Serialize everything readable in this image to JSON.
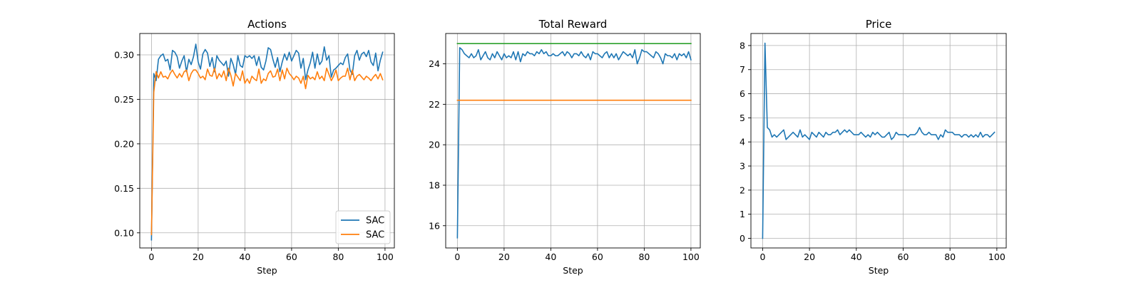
{
  "figure": {
    "background": "#ffffff",
    "grid_color": "#b0b0b0"
  },
  "chart_data": [
    {
      "type": "line",
      "title": "Actions",
      "xlabel": "Step",
      "ylabel": "",
      "xlim": [
        -5,
        104
      ],
      "ylim": [
        0.083,
        0.324
      ],
      "xticks": [
        0,
        20,
        40,
        60,
        80,
        100
      ],
      "xtick_labels": [
        "0",
        "20",
        "40",
        "60",
        "80",
        "100"
      ],
      "yticks": [
        0.1,
        0.15,
        0.2,
        0.25,
        0.3
      ],
      "ytick_labels": [
        "0.10",
        "0.15",
        "0.20",
        "0.25",
        "0.30"
      ],
      "grid": true,
      "legend": {
        "placement": "lower-right",
        "entries": [
          "SAC",
          "SAC"
        ]
      },
      "series": [
        {
          "name": "SAC",
          "color": "#1f77b4",
          "x_start": 0,
          "values": [
            0.092,
            0.279,
            0.271,
            0.295,
            0.299,
            0.301,
            0.293,
            0.295,
            0.283,
            0.305,
            0.303,
            0.298,
            0.285,
            0.293,
            0.299,
            0.281,
            0.295,
            0.289,
            0.298,
            0.312,
            0.292,
            0.284,
            0.301,
            0.306,
            0.302,
            0.287,
            0.297,
            0.281,
            0.299,
            0.294,
            0.291,
            0.288,
            0.293,
            0.276,
            0.296,
            0.289,
            0.278,
            0.299,
            0.288,
            0.286,
            0.299,
            0.297,
            0.299,
            0.296,
            0.299,
            0.288,
            0.298,
            0.286,
            0.283,
            0.293,
            0.308,
            0.306,
            0.295,
            0.286,
            0.297,
            0.281,
            0.292,
            0.301,
            0.294,
            0.303,
            0.293,
            0.299,
            0.305,
            0.302,
            0.285,
            0.296,
            0.272,
            0.283,
            0.291,
            0.303,
            0.285,
            0.301,
            0.289,
            0.293,
            0.309,
            0.294,
            0.299,
            0.275,
            0.283,
            0.285,
            0.288,
            0.291,
            0.289,
            0.297,
            0.301,
            0.283,
            0.278,
            0.299,
            0.305,
            0.294,
            0.301,
            0.303,
            0.298,
            0.305,
            0.292,
            0.288,
            0.302,
            0.282,
            0.294,
            0.303
          ]
        },
        {
          "name": "SAC",
          "color": "#ff7f0e",
          "x_start": 0,
          "values": [
            0.098,
            0.258,
            0.281,
            0.274,
            0.281,
            0.275,
            0.276,
            0.273,
            0.279,
            0.283,
            0.278,
            0.274,
            0.279,
            0.275,
            0.281,
            0.283,
            0.271,
            0.279,
            0.283,
            0.283,
            0.279,
            0.274,
            0.276,
            0.272,
            0.284,
            0.277,
            0.276,
            0.285,
            0.273,
            0.279,
            0.275,
            0.282,
            0.271,
            0.285,
            0.277,
            0.265,
            0.279,
            0.275,
            0.271,
            0.282,
            0.268,
            0.273,
            0.268,
            0.276,
            0.273,
            0.271,
            0.284,
            0.268,
            0.273,
            0.271,
            0.279,
            0.282,
            0.275,
            0.276,
            0.284,
            0.271,
            0.283,
            0.273,
            0.285,
            0.279,
            0.276,
            0.272,
            0.276,
            0.274,
            0.268,
            0.276,
            0.262,
            0.277,
            0.273,
            0.275,
            0.272,
            0.281,
            0.273,
            0.276,
            0.271,
            0.285,
            0.278,
            0.271,
            0.276,
            0.283,
            0.271,
            0.274,
            0.276,
            0.276,
            0.285,
            0.272,
            0.283,
            0.271,
            0.276,
            0.278,
            0.275,
            0.272,
            0.276,
            0.274,
            0.271,
            0.275,
            0.278,
            0.273,
            0.279,
            0.272
          ]
        }
      ]
    },
    {
      "type": "line",
      "title": "Total Reward",
      "xlabel": "Step",
      "ylabel": "",
      "xlim": [
        -5,
        104
      ],
      "ylim": [
        14.9,
        25.5
      ],
      "xticks": [
        0,
        20,
        40,
        60,
        80,
        100
      ],
      "xtick_labels": [
        "0",
        "20",
        "40",
        "60",
        "80",
        "100"
      ],
      "yticks": [
        16,
        18,
        20,
        22,
        24
      ],
      "ytick_labels": [
        "16",
        "18",
        "20",
        "22",
        "24"
      ],
      "grid": true,
      "series": [
        {
          "color": "#1f77b4",
          "x_start": 0,
          "values": [
            15.4,
            24.8,
            24.7,
            24.5,
            24.4,
            24.3,
            24.5,
            24.3,
            24.4,
            24.7,
            24.2,
            24.4,
            24.6,
            24.3,
            24.2,
            24.5,
            24.3,
            24.6,
            24.4,
            24.2,
            24.5,
            24.3,
            24.4,
            24.3,
            24.6,
            24.2,
            24.6,
            24.1,
            24.5,
            24.4,
            24.6,
            24.5,
            24.5,
            24.4,
            24.6,
            24.5,
            24.7,
            24.5,
            24.6,
            24.4,
            24.4,
            24.5,
            24.4,
            24.4,
            24.5,
            24.6,
            24.4,
            24.6,
            24.5,
            24.3,
            24.5,
            24.5,
            24.4,
            24.6,
            24.4,
            24.3,
            24.5,
            24.2,
            24.6,
            24.5,
            24.5,
            24.4,
            24.3,
            24.5,
            24.6,
            24.3,
            24.5,
            24.3,
            24.5,
            24.2,
            24.4,
            24.6,
            24.5,
            24.4,
            24.5,
            24.3,
            24.7,
            24.0,
            24.3,
            24.7,
            24.6,
            24.6,
            24.5,
            24.4,
            24.3,
            24.6,
            24.5,
            24.3,
            24.0,
            24.5,
            24.4,
            24.4,
            24.3,
            24.5,
            24.2,
            24.5,
            24.4,
            24.5,
            24.3,
            24.6,
            24.2
          ]
        },
        {
          "color": "#ff7f0e",
          "x_start": 0,
          "values": [
            22.2,
            22.2
          ]
        },
        {
          "color": "#2ca02c",
          "x_start": 0,
          "values": [
            25.0,
            25.0
          ]
        }
      ]
    },
    {
      "type": "line",
      "title": "Price",
      "xlabel": "Step",
      "ylabel": "",
      "xlim": [
        -5,
        104
      ],
      "ylim": [
        -0.4,
        8.5
      ],
      "xticks": [
        0,
        20,
        40,
        60,
        80,
        100
      ],
      "xtick_labels": [
        "0",
        "20",
        "40",
        "60",
        "80",
        "100"
      ],
      "yticks": [
        0,
        1,
        2,
        3,
        4,
        5,
        6,
        7,
        8
      ],
      "ytick_labels": [
        "0",
        "1",
        "2",
        "3",
        "4",
        "5",
        "6",
        "7",
        "8"
      ],
      "grid": true,
      "series": [
        {
          "color": "#1f77b4",
          "x_start": 0,
          "values": [
            0.0,
            8.1,
            4.6,
            4.5,
            4.2,
            4.3,
            4.2,
            4.3,
            4.4,
            4.5,
            4.1,
            4.2,
            4.3,
            4.4,
            4.3,
            4.2,
            4.5,
            4.2,
            4.3,
            4.2,
            4.1,
            4.4,
            4.3,
            4.2,
            4.4,
            4.3,
            4.2,
            4.4,
            4.3,
            4.3,
            4.4,
            4.4,
            4.5,
            4.3,
            4.4,
            4.5,
            4.4,
            4.5,
            4.4,
            4.3,
            4.3,
            4.3,
            4.4,
            4.3,
            4.2,
            4.3,
            4.2,
            4.4,
            4.3,
            4.4,
            4.3,
            4.2,
            4.2,
            4.3,
            4.4,
            4.1,
            4.2,
            4.4,
            4.3,
            4.3,
            4.3,
            4.3,
            4.2,
            4.3,
            4.3,
            4.3,
            4.4,
            4.6,
            4.4,
            4.3,
            4.3,
            4.4,
            4.3,
            4.3,
            4.3,
            4.1,
            4.3,
            4.2,
            4.5,
            4.4,
            4.4,
            4.4,
            4.3,
            4.3,
            4.3,
            4.2,
            4.3,
            4.3,
            4.2,
            4.3,
            4.2,
            4.3,
            4.2,
            4.4,
            4.2,
            4.3,
            4.3,
            4.2,
            4.3,
            4.4
          ]
        }
      ]
    }
  ]
}
